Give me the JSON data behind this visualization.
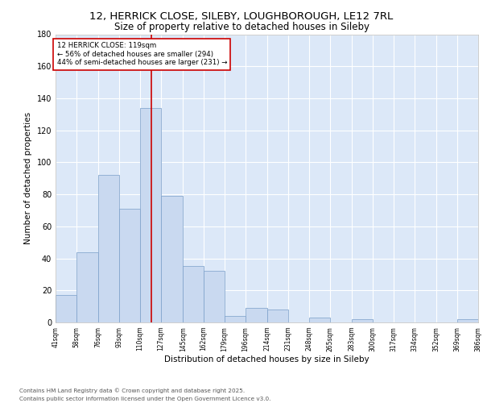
{
  "title_line1": "12, HERRICK CLOSE, SILEBY, LOUGHBOROUGH, LE12 7RL",
  "title_line2": "Size of property relative to detached houses in Sileby",
  "xlabel": "Distribution of detached houses by size in Sileby",
  "ylabel": "Number of detached properties",
  "bar_edges": [
    41,
    58,
    76,
    93,
    110,
    127,
    145,
    162,
    179,
    196,
    214,
    231,
    248,
    265,
    283,
    300,
    317,
    334,
    352,
    369,
    386
  ],
  "bar_heights": [
    17,
    44,
    92,
    71,
    134,
    79,
    35,
    32,
    4,
    9,
    8,
    0,
    3,
    0,
    2,
    0,
    0,
    0,
    0,
    2
  ],
  "bar_color": "#c9d9f0",
  "bar_edge_color": "#7a9ec8",
  "vline_x": 119,
  "vline_color": "#cc0000",
  "annotation_line1": "12 HERRICK CLOSE: 119sqm",
  "annotation_line2": "← 56% of detached houses are smaller (294)",
  "annotation_line3": "44% of semi-detached houses are larger (231) →",
  "annotation_box_color": "#ffffff",
  "annotation_box_edge": "#cc0000",
  "ylim": [
    0,
    180
  ],
  "yticks": [
    0,
    20,
    40,
    60,
    80,
    100,
    120,
    140,
    160,
    180
  ],
  "tick_labels": [
    "41sqm",
    "58sqm",
    "76sqm",
    "93sqm",
    "110sqm",
    "127sqm",
    "145sqm",
    "162sqm",
    "179sqm",
    "196sqm",
    "214sqm",
    "231sqm",
    "248sqm",
    "265sqm",
    "283sqm",
    "300sqm",
    "317sqm",
    "334sqm",
    "352sqm",
    "369sqm",
    "386sqm"
  ],
  "background_color": "#dce8f8",
  "footer_line1": "Contains HM Land Registry data © Crown copyright and database right 2025.",
  "footer_line2": "Contains public sector information licensed under the Open Government Licence v3.0.",
  "grid_color": "#ffffff"
}
